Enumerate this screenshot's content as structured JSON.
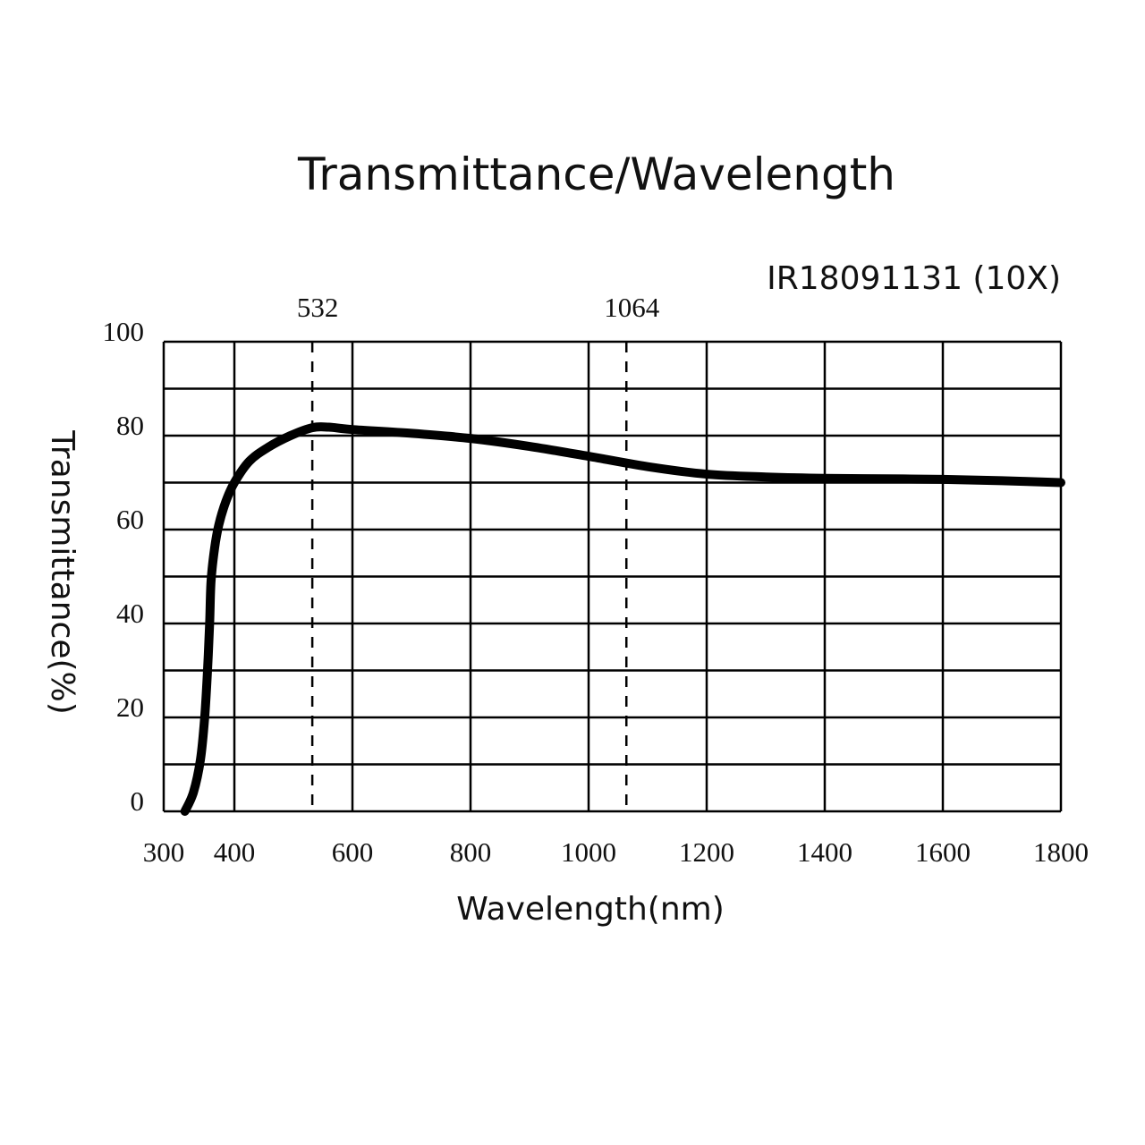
{
  "chart_data": {
    "type": "line",
    "title": "Transmittance/Wavelength",
    "subtitle": "IR18091131 (10X)",
    "xlabel": "Wavelength(nm)",
    "ylabel": "Transmittance(%)",
    "xlim": [
      300,
      1800
    ],
    "ylim": [
      0,
      100
    ],
    "x_ticks": [
      "300",
      "400",
      "600",
      "800",
      "1000",
      "1200",
      "1400",
      "1600",
      "1800"
    ],
    "x_tick_values": [
      300,
      400,
      600,
      800,
      1000,
      1200,
      1400,
      1600,
      1800
    ],
    "y_ticks": [
      "0",
      "20",
      "40",
      "60",
      "80",
      "100"
    ],
    "y_tick_values": [
      0,
      20,
      40,
      60,
      80,
      100
    ],
    "y_grid_step": 10,
    "grid": true,
    "reference_lines": [
      {
        "label": "532",
        "x": 532
      },
      {
        "label": "1064",
        "x": 1064
      }
    ],
    "series": [
      {
        "name": "IR18091131 (10X)",
        "color": "#000000",
        "x": [
          330,
          342,
          352,
          358,
          362,
          365,
          367,
          372,
          378,
          388,
          400,
          425,
          457,
          495,
          532,
          560,
          600,
          700,
          800,
          900,
          1000,
          1100,
          1200,
          1300,
          1400,
          1500,
          1600,
          1700,
          1800
        ],
        "y": [
          0,
          4,
          11,
          20,
          30,
          40,
          49,
          56,
          61,
          66,
          70,
          74.5,
          77.5,
          80,
          81.7,
          81.8,
          81.3,
          80.5,
          79.4,
          77.7,
          75.6,
          73.4,
          71.8,
          71.2,
          70.9,
          70.8,
          70.7,
          70.4,
          70.0
        ]
      }
    ]
  }
}
